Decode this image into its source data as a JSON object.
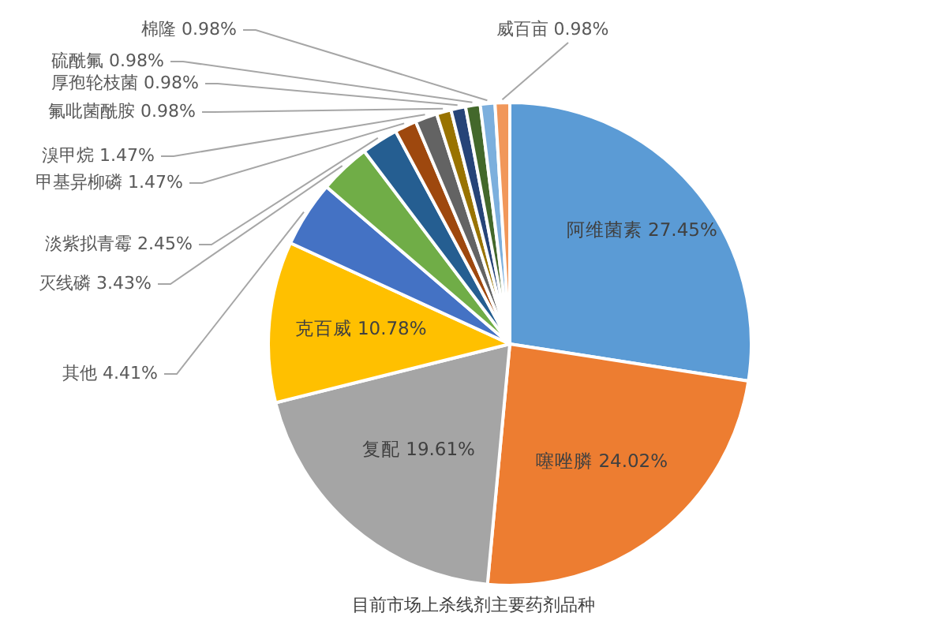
{
  "chart_data": {
    "type": "pie",
    "title": "目前市场上杀线剂主要药剂品种",
    "categories": [
      "阿维菌素",
      "噻唑膦",
      "复配",
      "克百威",
      "其他",
      "灭线磷",
      "淡紫拟青霉",
      "甲基异柳磷",
      "溴甲烷",
      "氟吡菌酰胺",
      "厚孢轮枝菌",
      "硫酰氟",
      "棉隆",
      "威百亩"
    ],
    "values": [
      27.45,
      24.02,
      19.61,
      10.78,
      4.41,
      3.43,
      2.45,
      1.47,
      1.47,
      0.98,
      0.98,
      0.98,
      0.98,
      0.98
    ],
    "colors": [
      "#5b9bd5",
      "#ed7d31",
      "#a5a5a5",
      "#ffc000",
      "#4472c4",
      "#70ad47",
      "#255e91",
      "#9e480e",
      "#636363",
      "#997300",
      "#264478",
      "#43682b",
      "#7cafdd",
      "#f1975a"
    ],
    "value_labels": [
      "27.45%",
      "24.02%",
      "19.61%",
      "10.78%",
      "4.41%",
      "3.43%",
      "2.45%",
      "1.47%",
      "1.47%",
      "0.98%",
      "0.98%",
      "0.98%",
      "0.98%",
      "0.98%"
    ],
    "legend": false
  }
}
